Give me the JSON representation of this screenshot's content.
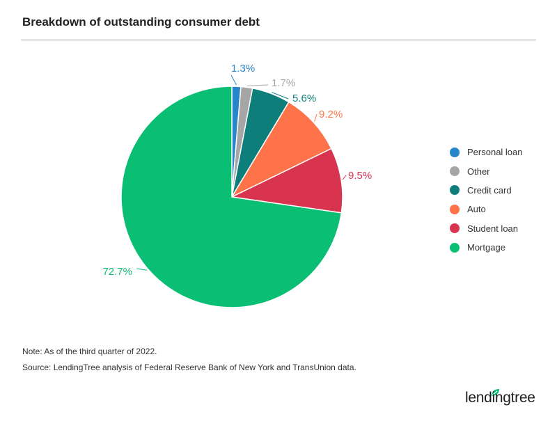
{
  "title": "Breakdown of outstanding consumer debt",
  "chart_data": {
    "type": "pie",
    "title": "Breakdown of outstanding consumer debt",
    "slices": [
      {
        "label": "Personal loan",
        "value": 1.3,
        "display": "1.3%",
        "color": "#2785c9"
      },
      {
        "label": "Other",
        "value": 1.7,
        "display": "1.7%",
        "color": "#a6a6a6"
      },
      {
        "label": "Credit card",
        "value": 5.6,
        "display": "5.6%",
        "color": "#0e7e7b"
      },
      {
        "label": "Auto",
        "value": 9.2,
        "display": "9.2%",
        "color": "#ff734a"
      },
      {
        "label": "Student loan",
        "value": 9.5,
        "display": "9.5%",
        "color": "#d8344f"
      },
      {
        "label": "Mortgage",
        "value": 72.7,
        "display": "72.7%",
        "color": "#0abf74"
      }
    ],
    "start_angle": "12 o'clock",
    "direction": "clockwise",
    "legend_position": "right"
  },
  "legend": [
    "Personal loan",
    "Other",
    "Credit card",
    "Auto",
    "Student loan",
    "Mortgage"
  ],
  "notes": {
    "note": "Note: As of the third quarter of 2022.",
    "source": "Source: LendingTree analysis of Federal Reserve Bank of New York and TransUnion data."
  },
  "logo": {
    "text": "lendingtree",
    "color": "#0abf74"
  }
}
